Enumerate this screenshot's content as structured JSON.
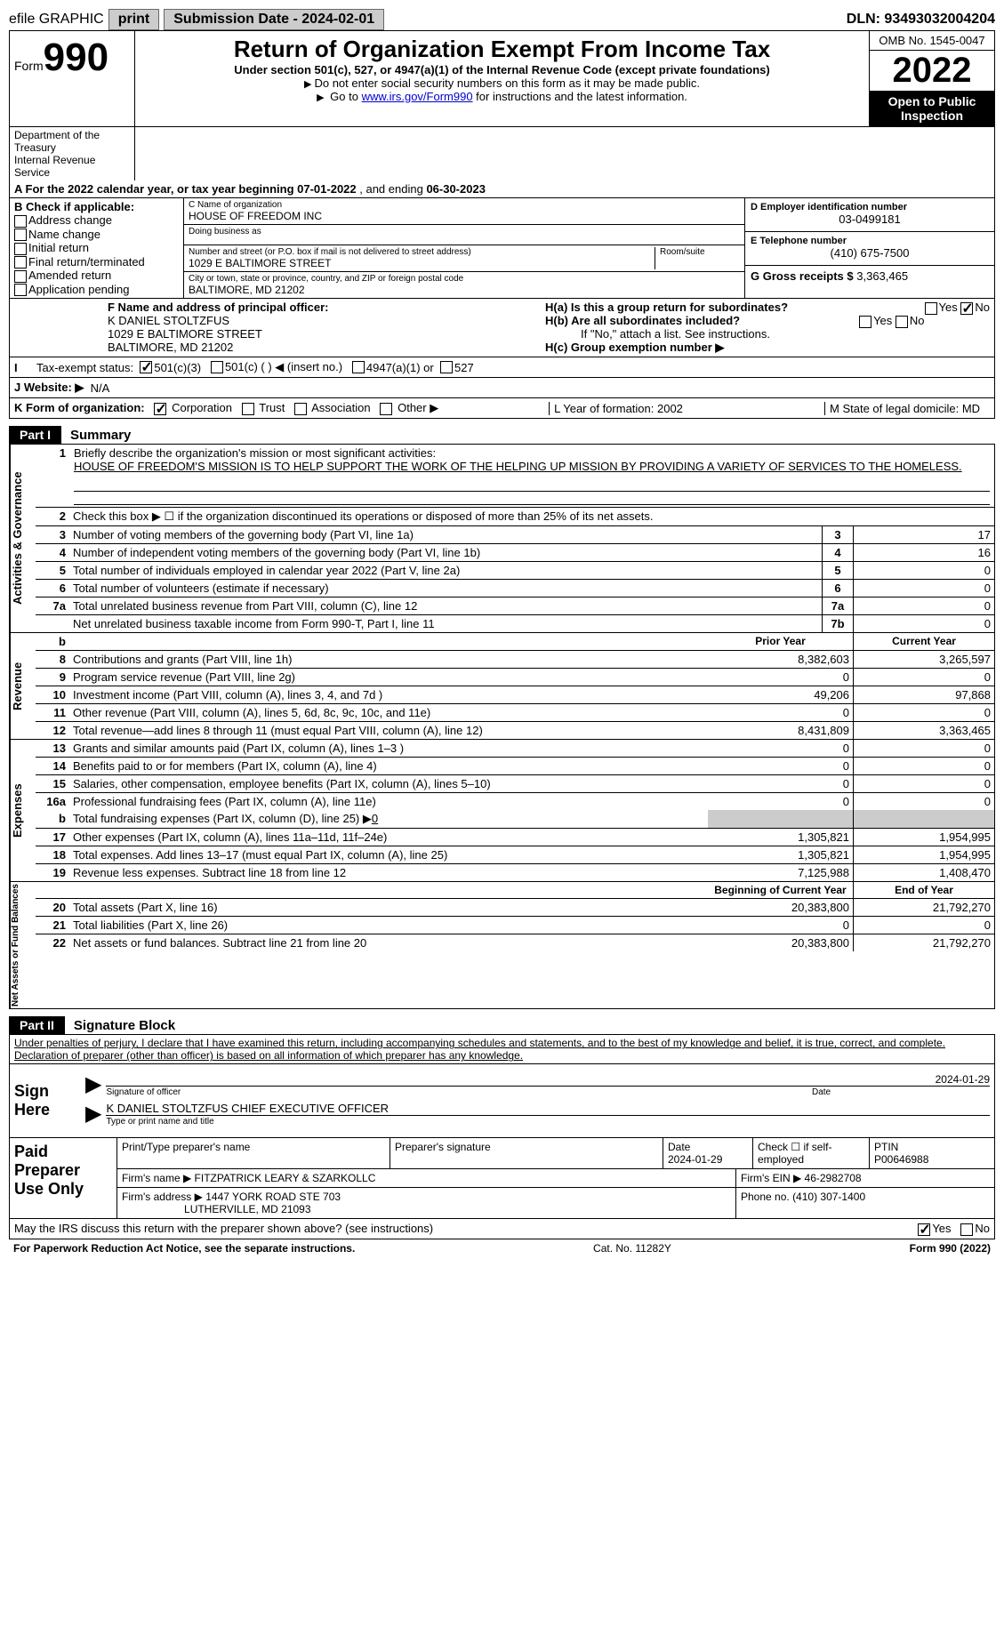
{
  "top": {
    "efile": "efile GRAPHIC",
    "print": "print",
    "submission_label": "Submission Date - 2024-02-01",
    "dln": "DLN: 93493032004204"
  },
  "header": {
    "form_word": "Form",
    "form_num": "990",
    "title": "Return of Organization Exempt From Income Tax",
    "subtitle": "Under section 501(c), 527, or 4947(a)(1) of the Internal Revenue Code (except private foundations)",
    "note1": "Do not enter social security numbers on this form as it may be made public.",
    "note2_pre": "Go to ",
    "note2_link": "www.irs.gov/Form990",
    "note2_post": " for instructions and the latest information.",
    "omb": "OMB No. 1545-0047",
    "year": "2022",
    "open": "Open to Public Inspection",
    "dept": "Department of the Treasury",
    "irs": "Internal Revenue Service"
  },
  "rowA": {
    "pre": "A For the 2022 calendar year, or tax year beginning ",
    "begin": "07-01-2022",
    "mid": " , and ending ",
    "end": "06-30-2023"
  },
  "boxB": {
    "title": "B Check if applicable:",
    "opts": [
      "Address change",
      "Name change",
      "Initial return",
      "Final return/terminated",
      "Amended return",
      "Application pending"
    ]
  },
  "boxC": {
    "name_label": "C Name of organization",
    "name": "HOUSE OF FREEDOM INC",
    "dba_label": "Doing business as",
    "addr_label": "Number and street (or P.O. box if mail is not delivered to street address)",
    "room_label": "Room/suite",
    "addr": "1029 E BALTIMORE STREET",
    "city_label": "City or town, state or province, country, and ZIP or foreign postal code",
    "city": "BALTIMORE, MD  21202"
  },
  "boxD": {
    "label": "D Employer identification number",
    "val": "03-0499181"
  },
  "boxE": {
    "label": "E Telephone number",
    "val": "(410) 675-7500"
  },
  "boxG": {
    "label": "G Gross receipts $",
    "val": "3,363,465"
  },
  "boxF": {
    "label": "F Name and address of principal officer:",
    "name": "K DANIEL STOLTZFUS",
    "addr": "1029 E BALTIMORE STREET",
    "city": "BALTIMORE, MD  21202"
  },
  "boxH": {
    "a": "H(a)  Is this a group return for subordinates?",
    "b": "H(b)  Are all subordinates included?",
    "b_note": "If \"No,\" attach a list. See instructions.",
    "c": "H(c)  Group exemption number ▶",
    "yes": "Yes",
    "no": "No"
  },
  "taxStatus": {
    "label": "Tax-exempt status:",
    "c3": "501(c)(3)",
    "c": "501(c) (  ) ◀ (insert no.)",
    "a1": "4947(a)(1) or",
    "s527": "527"
  },
  "website": {
    "label": "J  Website: ▶",
    "val": "N/A"
  },
  "korg": {
    "label": "K Form of organization:",
    "corp": "Corporation",
    "trust": "Trust",
    "assoc": "Association",
    "other": "Other ▶",
    "L": "L Year of formation: 2002",
    "M": "M State of legal domicile: MD"
  },
  "part1": {
    "badge": "Part I",
    "title": "Summary"
  },
  "summary": {
    "q1": "Briefly describe the organization's mission or most significant activities:",
    "mission": "HOUSE OF FREEDOM'S MISSION IS TO HELP SUPPORT THE WORK OF THE HELPING UP MISSION BY PROVIDING A VARIETY OF SERVICES TO THE HOMELESS.",
    "q2": "Check this box ▶ ☐  if the organization discontinued its operations or disposed of more than 25% of its net assets.",
    "rows_single": [
      {
        "n": "3",
        "d": "Number of voting members of the governing body (Part VI, line 1a)",
        "box": "3",
        "v": "17"
      },
      {
        "n": "4",
        "d": "Number of independent voting members of the governing body (Part VI, line 1b)",
        "box": "4",
        "v": "16"
      },
      {
        "n": "5",
        "d": "Total number of individuals employed in calendar year 2022 (Part V, line 2a)",
        "box": "5",
        "v": "0"
      },
      {
        "n": "6",
        "d": "Total number of volunteers (estimate if necessary)",
        "box": "6",
        "v": "0"
      },
      {
        "n": "7a",
        "d": "Total unrelated business revenue from Part VIII, column (C), line 12",
        "box": "7a",
        "v": "0"
      },
      {
        "n": "",
        "d": "Net unrelated business taxable income from Form 990-T, Part I, line 11",
        "box": "7b",
        "v": "0"
      }
    ],
    "col_prior": "Prior Year",
    "col_curr": "Current Year",
    "revenue": [
      {
        "n": "8",
        "d": "Contributions and grants (Part VIII, line 1h)",
        "p": "8,382,603",
        "c": "3,265,597"
      },
      {
        "n": "9",
        "d": "Program service revenue (Part VIII, line 2g)",
        "p": "0",
        "c": "0"
      },
      {
        "n": "10",
        "d": "Investment income (Part VIII, column (A), lines 3, 4, and 7d )",
        "p": "49,206",
        "c": "97,868"
      },
      {
        "n": "11",
        "d": "Other revenue (Part VIII, column (A), lines 5, 6d, 8c, 9c, 10c, and 11e)",
        "p": "0",
        "c": "0"
      },
      {
        "n": "12",
        "d": "Total revenue—add lines 8 through 11 (must equal Part VIII, column (A), line 12)",
        "p": "8,431,809",
        "c": "3,363,465"
      }
    ],
    "expenses": [
      {
        "n": "13",
        "d": "Grants and similar amounts paid (Part IX, column (A), lines 1–3 )",
        "p": "0",
        "c": "0"
      },
      {
        "n": "14",
        "d": "Benefits paid to or for members (Part IX, column (A), line 4)",
        "p": "0",
        "c": "0"
      },
      {
        "n": "15",
        "d": "Salaries, other compensation, employee benefits (Part IX, column (A), lines 5–10)",
        "p": "0",
        "c": "0"
      },
      {
        "n": "16a",
        "d": "Professional fundraising fees (Part IX, column (A), line 11e)",
        "p": "0",
        "c": "0"
      }
    ],
    "line_b": {
      "n": "b",
      "d": "Total fundraising expenses (Part IX, column (D), line 25) ▶",
      "v": "0"
    },
    "expenses2": [
      {
        "n": "17",
        "d": "Other expenses (Part IX, column (A), lines 11a–11d, 11f–24e)",
        "p": "1,305,821",
        "c": "1,954,995"
      },
      {
        "n": "18",
        "d": "Total expenses. Add lines 13–17 (must equal Part IX, column (A), line 25)",
        "p": "1,305,821",
        "c": "1,954,995"
      },
      {
        "n": "19",
        "d": "Revenue less expenses. Subtract line 18 from line 12",
        "p": "7,125,988",
        "c": "1,408,470"
      }
    ],
    "col_begin": "Beginning of Current Year",
    "col_end": "End of Year",
    "netassets": [
      {
        "n": "20",
        "d": "Total assets (Part X, line 16)",
        "p": "20,383,800",
        "c": "21,792,270"
      },
      {
        "n": "21",
        "d": "Total liabilities (Part X, line 26)",
        "p": "0",
        "c": "0"
      },
      {
        "n": "22",
        "d": "Net assets or fund balances. Subtract line 21 from line 20",
        "p": "20,383,800",
        "c": "21,792,270"
      }
    ],
    "side_gov": "Activities & Governance",
    "side_rev": "Revenue",
    "side_exp": "Expenses",
    "side_net": "Net Assets or Fund Balances"
  },
  "part2": {
    "badge": "Part II",
    "title": "Signature Block",
    "penalty": "Under penalties of perjury, I declare that I have examined this return, including accompanying schedules and statements, and to the best of my knowledge and belief, it is true, correct, and complete. Declaration of preparer (other than officer) is based on all information of which preparer has any knowledge.",
    "sign_here": "Sign Here",
    "sig_officer": "Signature of officer",
    "sig_date": "Date",
    "date_val": "2024-01-29",
    "officer_name": "K DANIEL STOLTZFUS  CHIEF EXECUTIVE OFFICER",
    "type_name": "Type or print name and title"
  },
  "preparer": {
    "label": "Paid Preparer Use Only",
    "h_print": "Print/Type preparer's name",
    "h_sig": "Preparer's signature",
    "h_date": "Date",
    "date": "2024-01-29",
    "check_self": "Check ☐ if self-employed",
    "ptin_label": "PTIN",
    "ptin": "P00646988",
    "firm_name_label": "Firm's name      ▶",
    "firm_name": "FITZPATRICK LEARY & SZARKOLLC",
    "firm_ein_label": "Firm's EIN ▶",
    "firm_ein": "46-2982708",
    "firm_addr_label": "Firm's address ▶",
    "firm_addr": "1447 YORK ROAD STE 703",
    "firm_city": "LUTHERVILLE, MD  21093",
    "phone_label": "Phone no.",
    "phone": "(410) 307-1400"
  },
  "discuss": {
    "q": "May the IRS discuss this return with the preparer shown above? (see instructions)",
    "yes": "Yes",
    "no": "No"
  },
  "footer": {
    "left": "For Paperwork Reduction Act Notice, see the separate instructions.",
    "mid": "Cat. No. 11282Y",
    "right": "Form 990 (2022)"
  }
}
